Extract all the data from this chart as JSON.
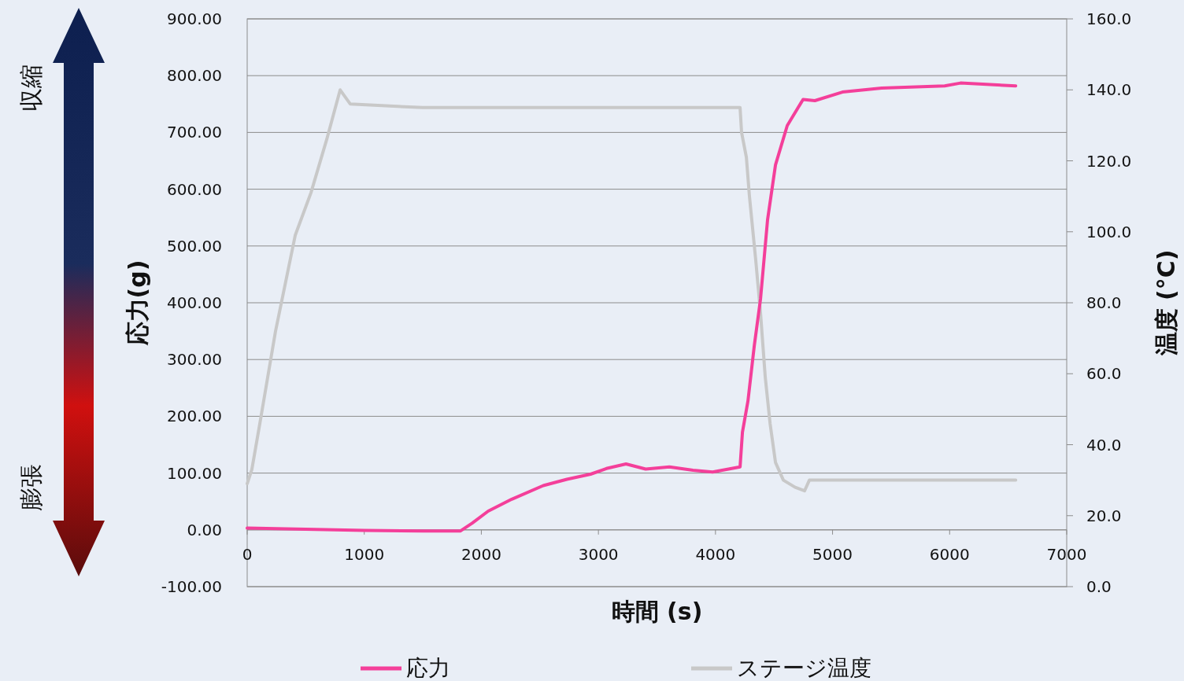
{
  "chart_data": {
    "type": "line",
    "xlabel": "時間 (s)",
    "ylabel": "応力(g)",
    "y2label": "温度 (°C)",
    "annotations": [
      "収縮",
      "膨張"
    ],
    "xlim": [
      0,
      7000
    ],
    "xticks": [
      0,
      1000,
      2000,
      3000,
      4000,
      5000,
      6000,
      7000
    ],
    "ylim": [
      -100,
      900
    ],
    "yticks": [
      {
        "value": -100,
        "label": "-100.00"
      },
      {
        "value": 0,
        "label": "0.00"
      },
      {
        "value": 100,
        "label": "100.00"
      },
      {
        "value": 200,
        "label": "200.00"
      },
      {
        "value": 300,
        "label": "300.00"
      },
      {
        "value": 400,
        "label": "400.00"
      },
      {
        "value": 500,
        "label": "500.00"
      },
      {
        "value": 600,
        "label": "600.00"
      },
      {
        "value": 700,
        "label": "700.00"
      },
      {
        "value": 800,
        "label": "800.00"
      },
      {
        "value": 900,
        "label": "900.00"
      }
    ],
    "y2lim": [
      0,
      160
    ],
    "y2ticks": [
      {
        "value": 0,
        "label": "0.0"
      },
      {
        "value": 20,
        "label": "20.0"
      },
      {
        "value": 40,
        "label": "40.0"
      },
      {
        "value": 60,
        "label": "60.0"
      },
      {
        "value": 80,
        "label": "80.0"
      },
      {
        "value": 100,
        "label": "100.0"
      },
      {
        "value": 120,
        "label": "120.0"
      },
      {
        "value": 140,
        "label": "140.0"
      },
      {
        "value": 160,
        "label": "160.0"
      }
    ],
    "grid": "y",
    "legend": "bottom",
    "marker": "none",
    "line_style": "solid",
    "series": [
      {
        "name": "応力",
        "color": "#f43f9a",
        "x": [
          0,
          500,
          1000,
          1500,
          1822,
          1923,
          2058,
          2260,
          2529,
          2731,
          2933,
          3068,
          3236,
          3404,
          3606,
          3808,
          3976,
          4210,
          4230,
          4277,
          4331,
          4385,
          4445,
          4513,
          4613,
          4748,
          4849,
          5084,
          5420,
          5958,
          6093,
          6564
        ],
        "values": [
          3,
          1,
          -1,
          -2,
          -2,
          12,
          33,
          54,
          78,
          89,
          98,
          108,
          116,
          107,
          111,
          105,
          102,
          111,
          172,
          227,
          324,
          407,
          546,
          643,
          712,
          758,
          756,
          771,
          778,
          782,
          787,
          782
        ]
      },
      {
        "name": "ステージ温度",
        "color": "#c8c8c8",
        "axis": "y2",
        "x": [
          0,
          40,
          108,
          242,
          410,
          545,
          679,
          794,
          881,
          1500,
          2500,
          3500,
          4210,
          4223,
          4264,
          4290,
          4344,
          4385,
          4425,
          4466,
          4513,
          4580,
          4680,
          4761,
          4802,
          5500,
          6564
        ],
        "values": [
          29,
          33,
          46,
          72,
          99,
          111,
          126,
          140,
          136,
          135,
          135,
          135,
          135,
          128,
          121,
          110,
          92,
          77,
          59,
          46,
          35,
          30,
          28,
          27,
          30,
          30,
          30
        ]
      }
    ]
  }
}
